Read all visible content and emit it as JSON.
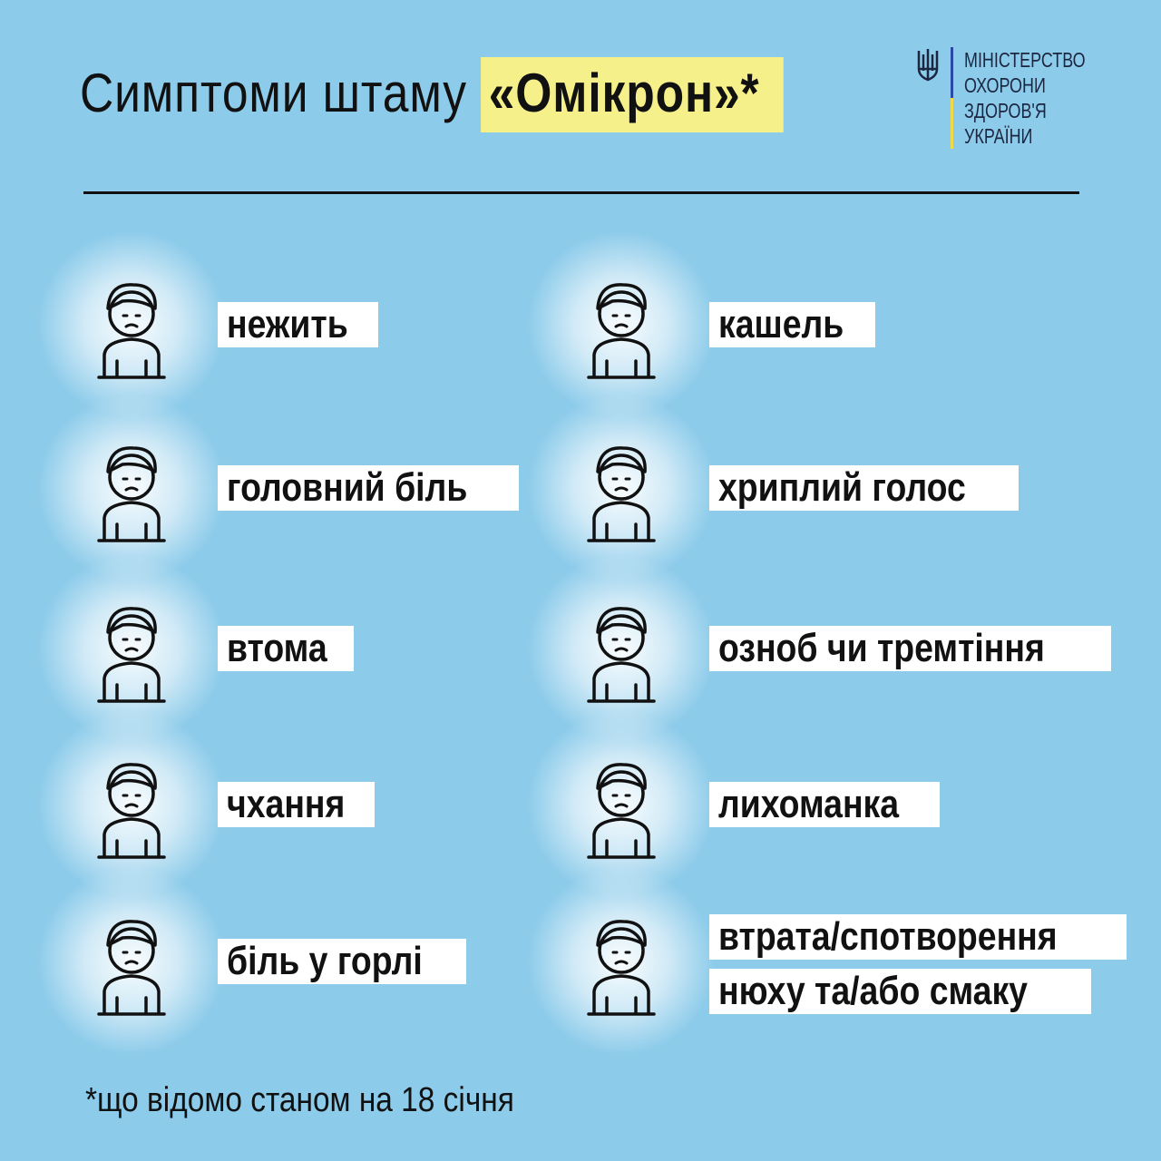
{
  "title": {
    "prefix": "Симптоми штаму ",
    "highlight": "«Омікрон»*"
  },
  "logo": {
    "lines": [
      "МІНІСТЕРСТВО",
      "ОХОРОНИ",
      "ЗДОРОВ'Я",
      "УКРАЇНИ"
    ],
    "emblem": "trident-icon"
  },
  "colors": {
    "background": "#8ccbea",
    "highlight": "#f6f08a",
    "label_bg": "#ffffff",
    "flag_blue": "#2a4aa8",
    "flag_yellow": "#f0d94a"
  },
  "symptoms": [
    {
      "label": "нежить",
      "icon": "runny-nose-icon"
    },
    {
      "label": "кашель",
      "icon": "cough-icon"
    },
    {
      "label": "головний біль",
      "icon": "headache-icon"
    },
    {
      "label": "хриплий голос",
      "icon": "hoarse-voice-icon"
    },
    {
      "label": "втома",
      "icon": "fatigue-icon"
    },
    {
      "label": "озноб чи тремтіння",
      "icon": "chills-icon"
    },
    {
      "label": "чхання",
      "icon": "sneeze-icon"
    },
    {
      "label": "лихоманка",
      "icon": "fever-icon"
    },
    {
      "label": "біль у горлі",
      "icon": "sore-throat-icon"
    },
    {
      "label": "втрата/спотворення",
      "label2": "нюху та/або смаку",
      "icon": "loss-of-smell-taste-icon"
    }
  ],
  "footnote": "*що відомо станом на 18 січня"
}
